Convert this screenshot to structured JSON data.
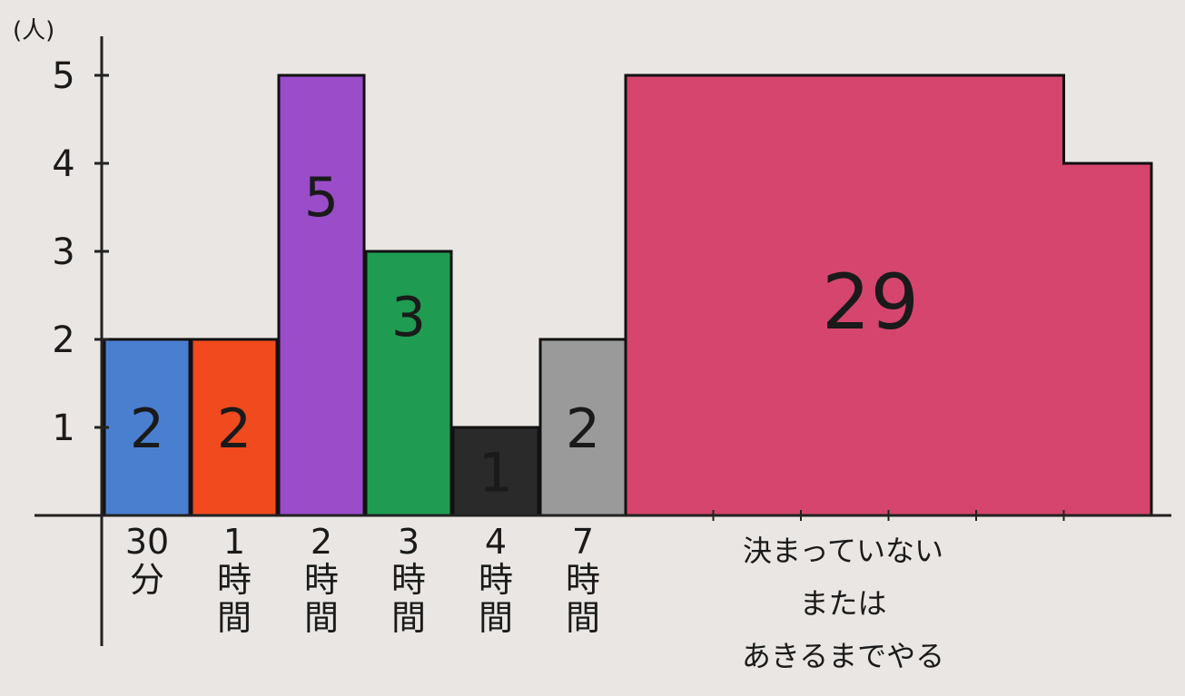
{
  "chart_data": {
    "type": "bar",
    "title": "",
    "xlabel": "",
    "ylabel": "(人)",
    "ylim": [
      0,
      5
    ],
    "yticks": [
      1,
      2,
      3,
      4,
      5
    ],
    "grid": false,
    "categories": [
      {
        "lines": [
          "30",
          "分"
        ]
      },
      {
        "lines": [
          "1",
          "時",
          "間"
        ]
      },
      {
        "lines": [
          "2",
          "時",
          "間"
        ]
      },
      {
        "lines": [
          "3",
          "時",
          "間"
        ]
      },
      {
        "lines": [
          "4",
          "時",
          "間"
        ]
      },
      {
        "lines": [
          "7",
          "時",
          "間"
        ]
      },
      {
        "lines": [
          "決まっていない",
          "または",
          "あきるまでやる"
        ]
      }
    ],
    "values": [
      2,
      2,
      5,
      3,
      1,
      2,
      29
    ],
    "value_labels": [
      "2",
      "2",
      "5",
      "3",
      "1",
      "2",
      "29"
    ],
    "colors": [
      "#4a7fd0",
      "#f04a1e",
      "#9a4cc9",
      "#1f9c52",
      "#2a2a2a",
      "#9a9a9a",
      "#d6456e"
    ],
    "last_bar_shape": {
      "column_heights": [
        5,
        5,
        5,
        5,
        5,
        4
      ]
    }
  }
}
